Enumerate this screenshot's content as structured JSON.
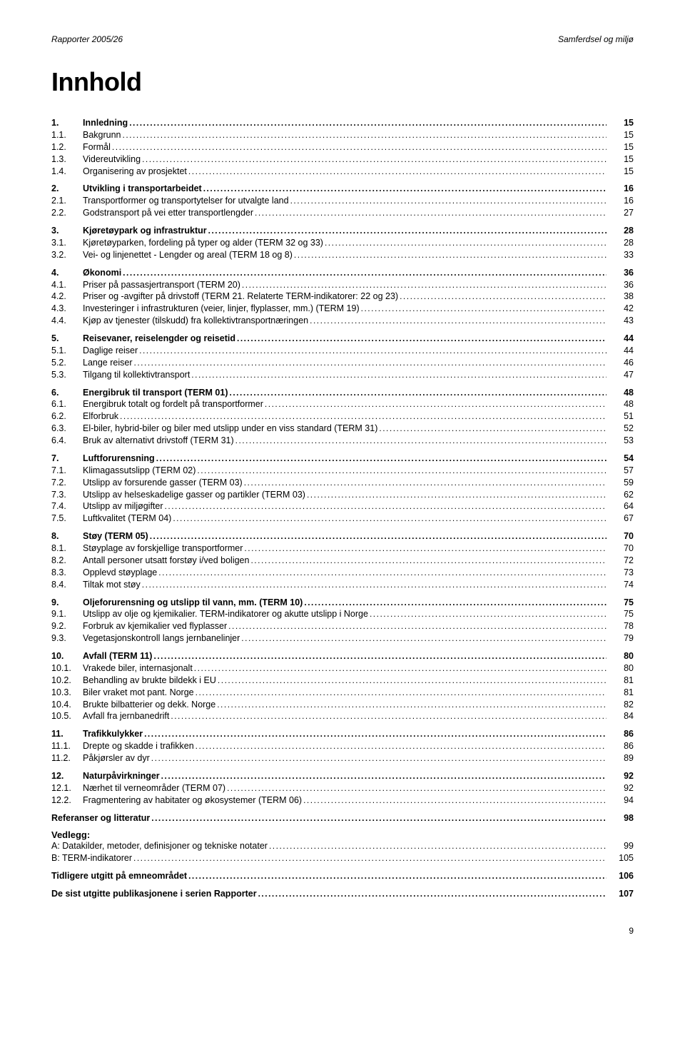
{
  "header": {
    "left": "Rapporter 2005/26",
    "right": "Samferdsel og miljø"
  },
  "title": "Innhold",
  "leader_dots": "............................................................................................................................................................................................................................",
  "footer_page": "9",
  "sections": [
    {
      "head": {
        "num": "1.",
        "label": "Innledning",
        "page": "15"
      },
      "entries": [
        {
          "num": "1.1.",
          "label": "Bakgrunn",
          "page": "15"
        },
        {
          "num": "1.2.",
          "label": "Formål",
          "page": "15"
        },
        {
          "num": "1.3.",
          "label": "Videreutvikling",
          "page": "15"
        },
        {
          "num": "1.4.",
          "label": "Organisering av prosjektet",
          "page": "15"
        }
      ]
    },
    {
      "head": {
        "num": "2.",
        "label": "Utvikling i transportarbeidet",
        "page": "16"
      },
      "entries": [
        {
          "num": "2.1.",
          "label": "Transportformer og transportytelser for utvalgte land",
          "page": "16"
        },
        {
          "num": "2.2.",
          "label": "Godstransport på vei etter transportlengder",
          "page": "27"
        }
      ]
    },
    {
      "head": {
        "num": "3.",
        "label": "Kjøretøypark og infrastruktur",
        "page": "28"
      },
      "entries": [
        {
          "num": "3.1.",
          "label": "Kjøretøyparken, fordeling på typer og alder (TERM 32 og 33)",
          "page": "28"
        },
        {
          "num": "3.2.",
          "label": "Vei- og linjenettet - Lengder og areal (TERM 18 og 8)",
          "page": "33"
        }
      ]
    },
    {
      "head": {
        "num": "4.",
        "label": "Økonomi",
        "page": "36"
      },
      "entries": [
        {
          "num": "4.1.",
          "label": "Priser på passasjertransport (TERM 20)",
          "page": "36"
        },
        {
          "num": "4.2.",
          "label": "Priser og -avgifter på drivstoff (TERM 21. Relaterte TERM-indikatorer: 22 og 23)",
          "page": "38"
        },
        {
          "num": "4.3.",
          "label": "Investeringer i infrastrukturen (veier, linjer, flyplasser, mm.) (TERM 19)",
          "page": "42"
        },
        {
          "num": "4.4.",
          "label": "Kjøp av tjenester (tilskudd) fra kollektivtransportnæringen",
          "page": "43"
        }
      ]
    },
    {
      "head": {
        "num": "5.",
        "label": "Reisevaner, reiselengder og reisetid",
        "page": "44"
      },
      "entries": [
        {
          "num": "5.1.",
          "label": "Daglige reiser",
          "page": "44"
        },
        {
          "num": "5.2.",
          "label": "Lange reiser",
          "page": "46"
        },
        {
          "num": "5.3.",
          "label": "Tilgang til kollektivtransport",
          "page": "47"
        }
      ]
    },
    {
      "head": {
        "num": "6.",
        "label": "Energibruk til transport (TERM 01)",
        "page": "48"
      },
      "entries": [
        {
          "num": "6.1.",
          "label": "Energibruk totalt og fordelt på transportformer",
          "page": "48"
        },
        {
          "num": "6.2.",
          "label": "Elforbruk",
          "page": "51"
        },
        {
          "num": "6.3.",
          "label": "El-biler, hybrid-biler og biler med utslipp under en viss standard (TERM 31)",
          "page": "52"
        },
        {
          "num": "6.4.",
          "label": "Bruk av alternativt drivstoff (TERM 31)",
          "page": "53"
        }
      ]
    },
    {
      "head": {
        "num": "7.",
        "label": "Luftforurensning",
        "page": "54"
      },
      "entries": [
        {
          "num": "7.1.",
          "label": "Klimagassutslipp (TERM 02)",
          "page": "57"
        },
        {
          "num": "7.2.",
          "label": "Utslipp av forsurende gasser (TERM 03)",
          "page": "59"
        },
        {
          "num": "7.3.",
          "label": "Utslipp av helseskadelige gasser og partikler (TERM 03)",
          "page": "62"
        },
        {
          "num": "7.4.",
          "label": "Utslipp av miljøgifter",
          "page": "64"
        },
        {
          "num": "7.5.",
          "label": "Luftkvalitet (TERM 04)",
          "page": "67"
        }
      ]
    },
    {
      "head": {
        "num": "8.",
        "label": "Støy (TERM 05)",
        "page": "70"
      },
      "entries": [
        {
          "num": "8.1.",
          "label": "Støyplage av forskjellige transportformer",
          "page": "70"
        },
        {
          "num": "8.2.",
          "label": "Antall personer utsatt forstøy i/ved boligen",
          "page": "72"
        },
        {
          "num": "8.3.",
          "label": "Opplevd støyplage",
          "page": "73"
        },
        {
          "num": "8.4.",
          "label": "Tiltak mot støy",
          "page": "74"
        }
      ]
    },
    {
      "head": {
        "num": "9.",
        "label": "Oljeforurensning og utslipp til vann, mm. (TERM 10)",
        "page": "75"
      },
      "entries": [
        {
          "num": "9.1.",
          "label": "Utslipp av olje og kjemikalier. TERM-indikatorer og akutte utslipp i Norge",
          "page": "75"
        },
        {
          "num": "9.2.",
          "label": "Forbruk av kjemikalier ved flyplasser",
          "page": "78"
        },
        {
          "num": "9.3.",
          "label": "Vegetasjonskontroll langs jernbanelinjer",
          "page": "79"
        }
      ]
    },
    {
      "head": {
        "num": "10.",
        "label": "Avfall (TERM 11)",
        "page": "80"
      },
      "entries": [
        {
          "num": "10.1.",
          "label": "Vrakede biler, internasjonalt",
          "page": "80"
        },
        {
          "num": "10.2.",
          "label": "Behandling av brukte bildekk i EU",
          "page": "81"
        },
        {
          "num": "10.3.",
          "label": "Biler vraket mot pant. Norge",
          "page": "81"
        },
        {
          "num": "10.4.",
          "label": "Brukte bilbatterier og dekk. Norge",
          "page": "82"
        },
        {
          "num": "10.5.",
          "label": "Avfall fra jernbanedrift",
          "page": "84"
        }
      ]
    },
    {
      "head": {
        "num": "11.",
        "label": "Trafikkulykker",
        "page": "86"
      },
      "entries": [
        {
          "num": "11.1.",
          "label": "Drepte og skadde i trafikken",
          "page": "86"
        },
        {
          "num": "11.2.",
          "label": "Påkjørsler av dyr",
          "page": "89"
        }
      ]
    },
    {
      "head": {
        "num": "12.",
        "label": "Naturpåvirkninger",
        "page": "92"
      },
      "entries": [
        {
          "num": "12.1.",
          "label": "Nærhet til verneområder (TERM 07)",
          "page": "92"
        },
        {
          "num": "12.2.",
          "label": "Fragmentering av habitater og økosystemer (TERM 06)",
          "page": "94"
        }
      ]
    }
  ],
  "tail": [
    {
      "bold": true,
      "label": "Referanser og litteratur",
      "page": "98"
    }
  ],
  "vedlegg": {
    "head": "Vedlegg:",
    "items": [
      {
        "label": "A: Datakilder, metoder, definisjoner og tekniske notater",
        "page": "99"
      },
      {
        "label": "B: TERM-indikatorer",
        "page": "105"
      }
    ]
  },
  "final": [
    {
      "bold": true,
      "label": "Tidligere utgitt på emneområdet",
      "page": "106"
    },
    {
      "bold": true,
      "label": "De sist utgitte publikasjonene i serien Rapporter",
      "page": "107"
    }
  ]
}
